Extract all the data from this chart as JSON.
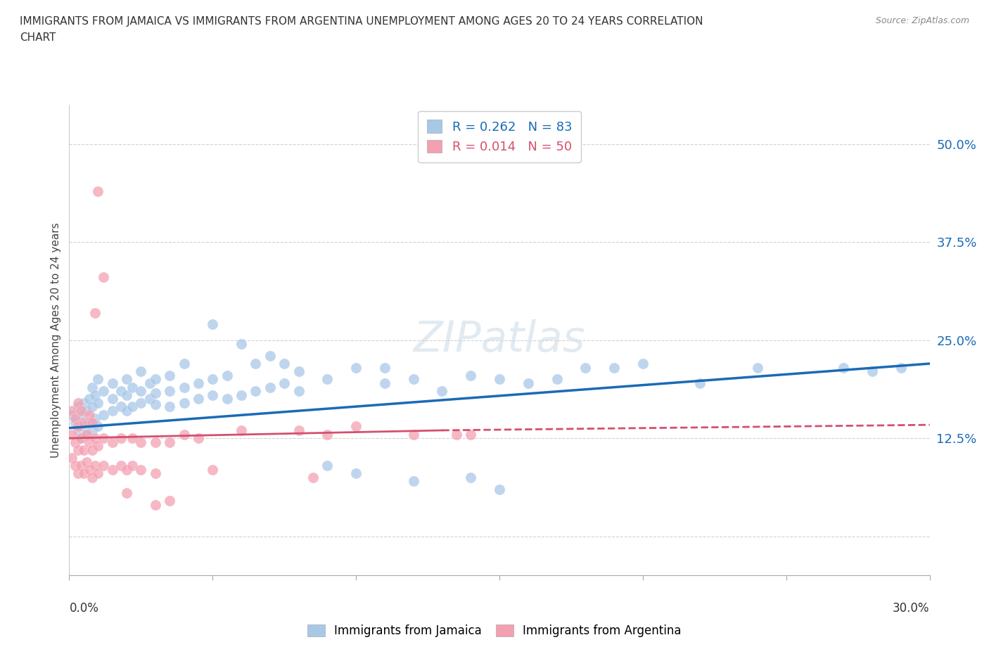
{
  "title_line1": "IMMIGRANTS FROM JAMAICA VS IMMIGRANTS FROM ARGENTINA UNEMPLOYMENT AMONG AGES 20 TO 24 YEARS CORRELATION",
  "title_line2": "CHART",
  "source": "Source: ZipAtlas.com",
  "ylabel": "Unemployment Among Ages 20 to 24 years",
  "yticks": [
    0.0,
    0.125,
    0.25,
    0.375,
    0.5
  ],
  "ytick_labels": [
    "",
    "12.5%",
    "25.0%",
    "37.5%",
    "50.0%"
  ],
  "xlim": [
    0.0,
    0.3
  ],
  "ylim": [
    -0.05,
    0.55
  ],
  "legend_R1": "0.262",
  "legend_N1": "83",
  "legend_R2": "0.014",
  "legend_N2": "50",
  "jamaica_color": "#a8c8e8",
  "argentina_color": "#f4a0b0",
  "jamaica_line_color": "#1a6bb5",
  "argentina_line_color": "#d45070",
  "jamaica_points": [
    [
      0.001,
      0.155
    ],
    [
      0.002,
      0.145
    ],
    [
      0.003,
      0.135
    ],
    [
      0.003,
      0.165
    ],
    [
      0.004,
      0.125
    ],
    [
      0.004,
      0.155
    ],
    [
      0.005,
      0.14
    ],
    [
      0.005,
      0.17
    ],
    [
      0.006,
      0.13
    ],
    [
      0.006,
      0.16
    ],
    [
      0.007,
      0.145
    ],
    [
      0.007,
      0.175
    ],
    [
      0.008,
      0.135
    ],
    [
      0.008,
      0.165
    ],
    [
      0.008,
      0.19
    ],
    [
      0.009,
      0.15
    ],
    [
      0.009,
      0.18
    ],
    [
      0.01,
      0.14
    ],
    [
      0.01,
      0.17
    ],
    [
      0.01,
      0.2
    ],
    [
      0.012,
      0.155
    ],
    [
      0.012,
      0.185
    ],
    [
      0.015,
      0.16
    ],
    [
      0.015,
      0.175
    ],
    [
      0.015,
      0.195
    ],
    [
      0.018,
      0.165
    ],
    [
      0.018,
      0.185
    ],
    [
      0.02,
      0.16
    ],
    [
      0.02,
      0.18
    ],
    [
      0.02,
      0.2
    ],
    [
      0.022,
      0.165
    ],
    [
      0.022,
      0.19
    ],
    [
      0.025,
      0.17
    ],
    [
      0.025,
      0.185
    ],
    [
      0.025,
      0.21
    ],
    [
      0.028,
      0.175
    ],
    [
      0.028,
      0.195
    ],
    [
      0.03,
      0.168
    ],
    [
      0.03,
      0.182
    ],
    [
      0.03,
      0.2
    ],
    [
      0.035,
      0.165
    ],
    [
      0.035,
      0.185
    ],
    [
      0.035,
      0.205
    ],
    [
      0.04,
      0.17
    ],
    [
      0.04,
      0.19
    ],
    [
      0.04,
      0.22
    ],
    [
      0.045,
      0.175
    ],
    [
      0.045,
      0.195
    ],
    [
      0.05,
      0.18
    ],
    [
      0.05,
      0.2
    ],
    [
      0.05,
      0.27
    ],
    [
      0.055,
      0.175
    ],
    [
      0.055,
      0.205
    ],
    [
      0.06,
      0.18
    ],
    [
      0.06,
      0.245
    ],
    [
      0.065,
      0.185
    ],
    [
      0.065,
      0.22
    ],
    [
      0.07,
      0.19
    ],
    [
      0.07,
      0.23
    ],
    [
      0.075,
      0.195
    ],
    [
      0.075,
      0.22
    ],
    [
      0.08,
      0.185
    ],
    [
      0.08,
      0.21
    ],
    [
      0.09,
      0.09
    ],
    [
      0.09,
      0.2
    ],
    [
      0.1,
      0.08
    ],
    [
      0.1,
      0.215
    ],
    [
      0.11,
      0.195
    ],
    [
      0.11,
      0.215
    ],
    [
      0.12,
      0.07
    ],
    [
      0.12,
      0.2
    ],
    [
      0.13,
      0.185
    ],
    [
      0.14,
      0.075
    ],
    [
      0.14,
      0.205
    ],
    [
      0.15,
      0.06
    ],
    [
      0.15,
      0.2
    ],
    [
      0.16,
      0.195
    ],
    [
      0.17,
      0.2
    ],
    [
      0.18,
      0.215
    ],
    [
      0.19,
      0.215
    ],
    [
      0.2,
      0.22
    ],
    [
      0.22,
      0.195
    ],
    [
      0.24,
      0.215
    ],
    [
      0.27,
      0.215
    ],
    [
      0.28,
      0.21
    ],
    [
      0.29,
      0.215
    ]
  ],
  "argentina_points": [
    [
      0.001,
      0.1
    ],
    [
      0.001,
      0.13
    ],
    [
      0.001,
      0.16
    ],
    [
      0.002,
      0.09
    ],
    [
      0.002,
      0.12
    ],
    [
      0.002,
      0.15
    ],
    [
      0.003,
      0.08
    ],
    [
      0.003,
      0.11
    ],
    [
      0.003,
      0.14
    ],
    [
      0.003,
      0.17
    ],
    [
      0.004,
      0.09
    ],
    [
      0.004,
      0.125
    ],
    [
      0.004,
      0.16
    ],
    [
      0.005,
      0.08
    ],
    [
      0.005,
      0.11
    ],
    [
      0.005,
      0.145
    ],
    [
      0.006,
      0.095
    ],
    [
      0.006,
      0.13
    ],
    [
      0.007,
      0.085
    ],
    [
      0.007,
      0.12
    ],
    [
      0.007,
      0.155
    ],
    [
      0.008,
      0.075
    ],
    [
      0.008,
      0.11
    ],
    [
      0.008,
      0.145
    ],
    [
      0.009,
      0.09
    ],
    [
      0.009,
      0.125
    ],
    [
      0.009,
      0.285
    ],
    [
      0.01,
      0.08
    ],
    [
      0.01,
      0.115
    ],
    [
      0.01,
      0.44
    ],
    [
      0.012,
      0.09
    ],
    [
      0.012,
      0.125
    ],
    [
      0.012,
      0.33
    ],
    [
      0.015,
      0.085
    ],
    [
      0.015,
      0.12
    ],
    [
      0.018,
      0.09
    ],
    [
      0.018,
      0.125
    ],
    [
      0.02,
      0.085
    ],
    [
      0.02,
      0.055
    ],
    [
      0.022,
      0.09
    ],
    [
      0.022,
      0.125
    ],
    [
      0.025,
      0.085
    ],
    [
      0.025,
      0.12
    ],
    [
      0.03,
      0.04
    ],
    [
      0.03,
      0.08
    ],
    [
      0.03,
      0.12
    ],
    [
      0.035,
      0.045
    ],
    [
      0.035,
      0.12
    ],
    [
      0.04,
      0.13
    ],
    [
      0.045,
      0.125
    ],
    [
      0.05,
      0.085
    ],
    [
      0.06,
      0.135
    ],
    [
      0.08,
      0.135
    ],
    [
      0.085,
      0.075
    ],
    [
      0.09,
      0.13
    ],
    [
      0.1,
      0.14
    ],
    [
      0.12,
      0.13
    ],
    [
      0.135,
      0.13
    ],
    [
      0.14,
      0.13
    ]
  ],
  "jamaica_trend": [
    0.0,
    0.138,
    0.3,
    0.22
  ],
  "argentina_solid": [
    0.0,
    0.125,
    0.13,
    0.135
  ],
  "argentina_dashed": [
    0.13,
    0.135,
    0.3,
    0.142
  ]
}
